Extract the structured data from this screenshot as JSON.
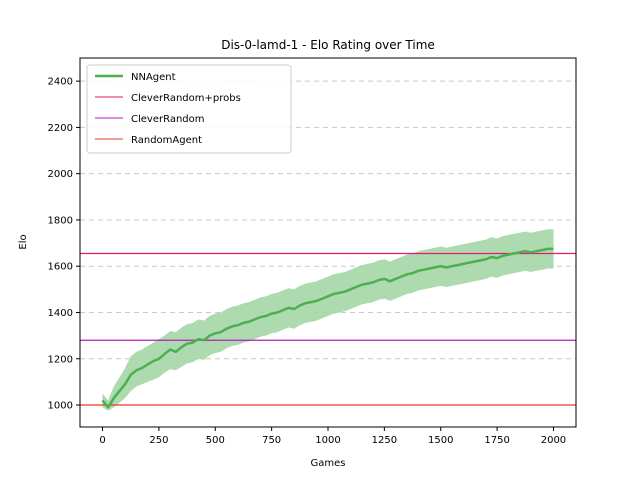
{
  "chart_data": {
    "type": "line",
    "title": "Dis-0-lamd-1 - Elo Rating over Time",
    "xlabel": "Games",
    "ylabel": "Elo",
    "xlim": [
      -100,
      2100
    ],
    "ylim": [
      905,
      2500
    ],
    "xticks": [
      0,
      250,
      500,
      750,
      1000,
      1250,
      1500,
      1750,
      2000
    ],
    "yticks": [
      1000,
      1200,
      1400,
      1600,
      1800,
      2000,
      2200,
      2400
    ],
    "grid": "y-dashed",
    "legend_position": "top-left",
    "colors": {
      "nnagent": "#4caf50",
      "nnagent_band": "#a5d6a7",
      "clever_probs": "#e6196e",
      "clever_random": "#b41eb4",
      "random_agent": "#e53935"
    },
    "series": [
      {
        "name": "NNAgent",
        "kind": "line",
        "x": [
          0,
          25,
          50,
          75,
          100,
          125,
          150,
          175,
          200,
          225,
          250,
          275,
          300,
          325,
          350,
          375,
          400,
          425,
          450,
          475,
          500,
          525,
          550,
          575,
          600,
          625,
          650,
          675,
          700,
          725,
          750,
          775,
          800,
          825,
          850,
          875,
          900,
          925,
          950,
          975,
          1000,
          1025,
          1050,
          1075,
          1100,
          1125,
          1150,
          1175,
          1200,
          1225,
          1250,
          1275,
          1300,
          1325,
          1350,
          1375,
          1400,
          1425,
          1450,
          1475,
          1500,
          1525,
          1550,
          1575,
          1600,
          1625,
          1650,
          1675,
          1700,
          1725,
          1750,
          1775,
          1800,
          1825,
          1850,
          1875,
          1900,
          1925,
          1950,
          1975,
          2000
        ],
        "y": [
          1020,
          990,
          1030,
          1060,
          1090,
          1130,
          1150,
          1160,
          1175,
          1190,
          1200,
          1220,
          1240,
          1230,
          1250,
          1265,
          1270,
          1285,
          1280,
          1300,
          1310,
          1315,
          1330,
          1340,
          1345,
          1355,
          1360,
          1370,
          1380,
          1385,
          1395,
          1400,
          1410,
          1420,
          1415,
          1430,
          1440,
          1445,
          1450,
          1460,
          1470,
          1480,
          1485,
          1490,
          1500,
          1510,
          1520,
          1525,
          1530,
          1540,
          1545,
          1535,
          1545,
          1555,
          1565,
          1570,
          1580,
          1585,
          1590,
          1595,
          1600,
          1595,
          1600,
          1605,
          1610,
          1615,
          1620,
          1625,
          1630,
          1640,
          1635,
          1645,
          1650,
          1655,
          1660,
          1665,
          1660,
          1665,
          1670,
          1675,
          1675
        ]
      },
      {
        "name": "NNAgent",
        "kind": "band",
        "x": [
          0,
          25,
          50,
          75,
          100,
          125,
          150,
          175,
          200,
          225,
          250,
          275,
          300,
          325,
          350,
          375,
          400,
          425,
          450,
          475,
          500,
          525,
          550,
          575,
          600,
          625,
          650,
          675,
          700,
          725,
          750,
          775,
          800,
          825,
          850,
          875,
          900,
          925,
          950,
          975,
          1000,
          1025,
          1050,
          1075,
          1100,
          1125,
          1150,
          1175,
          1200,
          1225,
          1250,
          1275,
          1300,
          1325,
          1350,
          1375,
          1400,
          1425,
          1450,
          1475,
          1500,
          1525,
          1550,
          1575,
          1600,
          1625,
          1650,
          1675,
          1700,
          1725,
          1750,
          1775,
          1800,
          1825,
          1850,
          1875,
          1900,
          1925,
          1950,
          1975,
          2000
        ],
        "lower": [
          990,
          975,
          990,
          1010,
          1030,
          1060,
          1080,
          1090,
          1100,
          1110,
          1120,
          1140,
          1155,
          1150,
          1165,
          1180,
          1185,
          1200,
          1195,
          1215,
          1225,
          1230,
          1245,
          1255,
          1260,
          1270,
          1275,
          1285,
          1295,
          1300,
          1310,
          1315,
          1325,
          1335,
          1330,
          1345,
          1355,
          1360,
          1365,
          1375,
          1385,
          1395,
          1400,
          1405,
          1415,
          1425,
          1435,
          1440,
          1445,
          1455,
          1460,
          1450,
          1460,
          1470,
          1480,
          1485,
          1495,
          1500,
          1505,
          1510,
          1515,
          1510,
          1515,
          1520,
          1525,
          1530,
          1535,
          1540,
          1545,
          1555,
          1550,
          1560,
          1565,
          1570,
          1575,
          1580,
          1575,
          1580,
          1585,
          1590,
          1590
        ],
        "upper": [
          1050,
          1020,
          1080,
          1120,
          1160,
          1210,
          1230,
          1240,
          1255,
          1270,
          1285,
          1300,
          1320,
          1315,
          1335,
          1350,
          1355,
          1370,
          1365,
          1385,
          1395,
          1400,
          1415,
          1425,
          1430,
          1440,
          1445,
          1455,
          1465,
          1470,
          1480,
          1485,
          1495,
          1505,
          1500,
          1515,
          1525,
          1530,
          1535,
          1545,
          1555,
          1565,
          1570,
          1575,
          1585,
          1595,
          1605,
          1610,
          1615,
          1625,
          1630,
          1620,
          1630,
          1640,
          1650,
          1655,
          1665,
          1670,
          1675,
          1680,
          1685,
          1680,
          1685,
          1690,
          1695,
          1700,
          1705,
          1710,
          1715,
          1725,
          1720,
          1730,
          1735,
          1740,
          1745,
          1750,
          1745,
          1750,
          1755,
          1760,
          1760
        ]
      },
      {
        "name": "CleverRandom+probs",
        "kind": "hline",
        "y": 1655
      },
      {
        "name": "CleverRandom",
        "kind": "hline",
        "y": 1280
      },
      {
        "name": "RandomAgent",
        "kind": "hline",
        "y": 1000
      }
    ],
    "legend": [
      "NNAgent",
      "CleverRandom+probs",
      "CleverRandom",
      "RandomAgent"
    ]
  }
}
